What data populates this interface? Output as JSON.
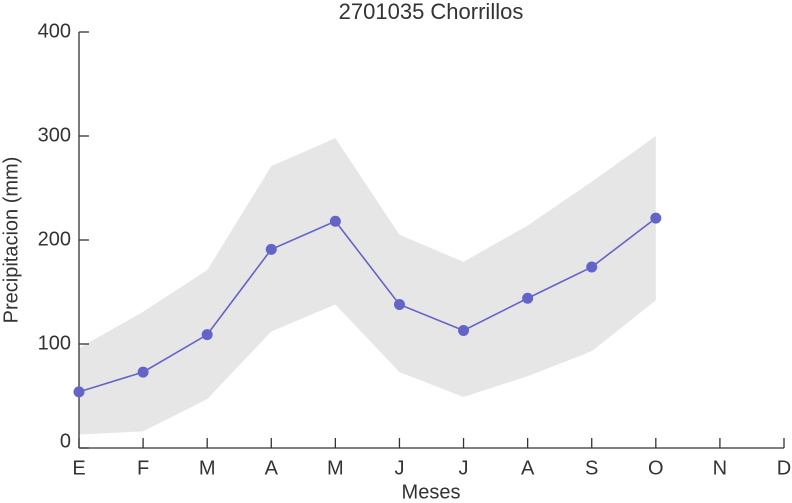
{
  "chart_data": {
    "type": "line",
    "title": "2701035 Chorrillos",
    "x_label": "Meses",
    "y_label": "Precipitacion (mm)",
    "categories": [
      "E",
      "F",
      "M",
      "A",
      "M",
      "J",
      "J",
      "A",
      "S",
      "O",
      "N",
      "D"
    ],
    "series": [
      {
        "color": "#6464c8",
        "values": [
          54,
          73,
          109,
          191,
          218,
          138,
          113,
          144,
          174,
          221,
          null,
          null
        ]
      }
    ],
    "band": {
      "color": "#e6e6e6",
      "upper": [
        96,
        131,
        171,
        271,
        298,
        205,
        179,
        214,
        256,
        300,
        null,
        null
      ],
      "lower": [
        13,
        16,
        47,
        112,
        138,
        73,
        49,
        69,
        93,
        142,
        null,
        null
      ]
    },
    "ylim": [
      0,
      400
    ],
    "yticks": [
      0,
      100,
      200,
      300,
      400
    ]
  }
}
